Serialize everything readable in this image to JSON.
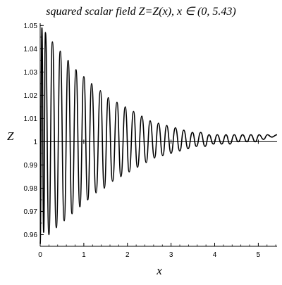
{
  "chart_data": {
    "type": "line",
    "title": "squared scalar field Z=Z(x), x ∈ (0, 5.43)",
    "xlabel": "x",
    "ylabel": "Z",
    "xlim": [
      0,
      5.43
    ],
    "ylim": [
      0.955,
      1.051
    ],
    "x_ticks": [
      0,
      1,
      2,
      3,
      4,
      5
    ],
    "x_tick_labels": [
      "0",
      "1",
      "2",
      "3",
      "4",
      "5"
    ],
    "y_ticks": [
      0.96,
      0.97,
      0.98,
      0.99,
      1.0,
      1.01,
      1.02,
      1.03,
      1.04,
      1.05
    ],
    "y_tick_labels": [
      "0.96",
      "0.97",
      "0.98",
      "0.99",
      "1",
      "1.01",
      "1.02",
      "1.03",
      "1.04",
      "1.05"
    ],
    "grid": false,
    "axes_cross_at_y": 1.0,
    "series": [
      {
        "color": "#000000",
        "points": [
          [
            0.0,
            0.956
          ],
          [
            0.04,
            1.049
          ],
          [
            0.08,
            0.961
          ],
          [
            0.12,
            1.047
          ],
          [
            0.2,
            0.96
          ],
          [
            0.28,
            1.043
          ],
          [
            0.37,
            0.963
          ],
          [
            0.46,
            1.039
          ],
          [
            0.55,
            0.966
          ],
          [
            0.64,
            1.035
          ],
          [
            0.73,
            0.969
          ],
          [
            0.82,
            1.031
          ],
          [
            0.91,
            0.972
          ],
          [
            1.0,
            1.028
          ],
          [
            1.09,
            0.975
          ],
          [
            1.18,
            1.025
          ],
          [
            1.28,
            0.978
          ],
          [
            1.38,
            1.022
          ],
          [
            1.47,
            0.98
          ],
          [
            1.56,
            1.019
          ],
          [
            1.66,
            0.983
          ],
          [
            1.76,
            1.017
          ],
          [
            1.85,
            0.985
          ],
          [
            1.95,
            1.015
          ],
          [
            2.04,
            0.987
          ],
          [
            2.14,
            1.013
          ],
          [
            2.23,
            0.989
          ],
          [
            2.33,
            1.011
          ],
          [
            2.43,
            0.991
          ],
          [
            2.52,
            1.009
          ],
          [
            2.62,
            0.993
          ],
          [
            2.71,
            1.008
          ],
          [
            2.81,
            0.994
          ],
          [
            2.9,
            1.007
          ],
          [
            3.0,
            0.995
          ],
          [
            3.1,
            1.006
          ],
          [
            3.2,
            0.996
          ],
          [
            3.29,
            1.005
          ],
          [
            3.39,
            0.997
          ],
          [
            3.49,
            1.004
          ],
          [
            3.58,
            0.998
          ],
          [
            3.68,
            1.004
          ],
          [
            3.78,
            0.998
          ],
          [
            3.87,
            1.003
          ],
          [
            3.97,
            0.999
          ],
          [
            4.06,
            1.003
          ],
          [
            4.16,
            0.999
          ],
          [
            4.26,
            1.003
          ],
          [
            4.35,
            0.999
          ],
          [
            4.45,
            1.003
          ],
          [
            4.54,
            1.0
          ],
          [
            4.64,
            1.003
          ],
          [
            4.74,
            1.0
          ],
          [
            4.83,
            1.003
          ],
          [
            4.93,
            1.0
          ],
          [
            5.02,
            1.003
          ],
          [
            5.12,
            1.001
          ],
          [
            5.21,
            1.003
          ],
          [
            5.31,
            1.002
          ],
          [
            5.43,
            1.003
          ]
        ]
      }
    ]
  }
}
